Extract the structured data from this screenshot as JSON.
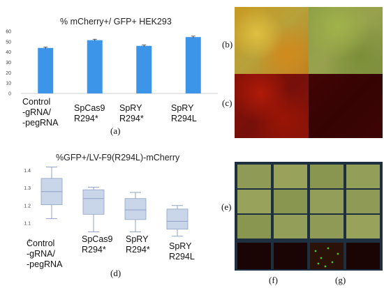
{
  "panel_labels": {
    "a": "(a)",
    "b": "(b)",
    "c": "(c)",
    "d": "(d)",
    "e": "(e)",
    "f": "(f)",
    "g": "(g)"
  },
  "chart_data": [
    {
      "type": "bar",
      "title": "% mCherry+/ GFP+ HEK293",
      "categories": [
        "Control -gRNA/ -pegRNA",
        "SpCas9 R294*",
        "SpRY R294*",
        "SpRY R294L"
      ],
      "category_lines": [
        [
          "Control",
          "-gRNA/",
          "-pegRNA"
        ],
        [
          "SpCas9",
          "R294*"
        ],
        [
          "SpRY",
          "R294*"
        ],
        [
          "SpRY",
          "R294L"
        ]
      ],
      "values": [
        44,
        51.5,
        46,
        54.5
      ],
      "errors": [
        0.8,
        0.9,
        0.8,
        0.9
      ],
      "yticks": [
        "0",
        "5",
        "10",
        "15",
        "20",
        "25",
        "30",
        "35",
        "40",
        "45",
        "50",
        "55",
        "60"
      ],
      "ylim": [
        0,
        60
      ],
      "color": "#3d95ea",
      "grid": false
    },
    {
      "type": "box",
      "title": "%GFP+/LV-F9(R294L)-mCherry",
      "categories": [
        "Control -gRNA/ -pegRNA",
        "SpCas9 R294*",
        "SpRY R294*",
        "SpRY R294L"
      ],
      "category_lines": [
        [
          "Control",
          "-gRNA/",
          "-pegRNA"
        ],
        [
          "SpCas9",
          "R294*"
        ],
        [
          "SpRY",
          "R294*"
        ],
        [
          "SpRY",
          "R294L"
        ]
      ],
      "boxes": [
        {
          "min": 1.125,
          "q1": 1.205,
          "median": 1.28,
          "q3": 1.355,
          "max": 1.42
        },
        {
          "min": 1.05,
          "q1": 1.15,
          "median": 1.24,
          "q3": 1.29,
          "max": 1.305
        },
        {
          "min": 1.05,
          "q1": 1.12,
          "median": 1.175,
          "q3": 1.24,
          "max": 1.275
        },
        {
          "min": 1.025,
          "q1": 1.065,
          "median": 1.11,
          "q3": 1.18,
          "max": 1.2
        }
      ],
      "yticks": [
        "1",
        "1.1",
        "1.2",
        "1.3",
        "1.4"
      ],
      "ylim": [
        1.0,
        1.45
      ],
      "box_color": "#c9d5e8",
      "line_color": "#8fa3c4"
    }
  ],
  "images": {
    "b": {
      "description_colors": [
        "#c8a426",
        "#8fa040"
      ]
    },
    "c": {
      "description_colors": [
        "#8a1206",
        "#3c0303"
      ]
    },
    "e": {
      "tile_color": "#8e9a55",
      "frame_color": "#1e3040"
    },
    "f": {
      "tile_color": "#1a0404"
    }
  }
}
